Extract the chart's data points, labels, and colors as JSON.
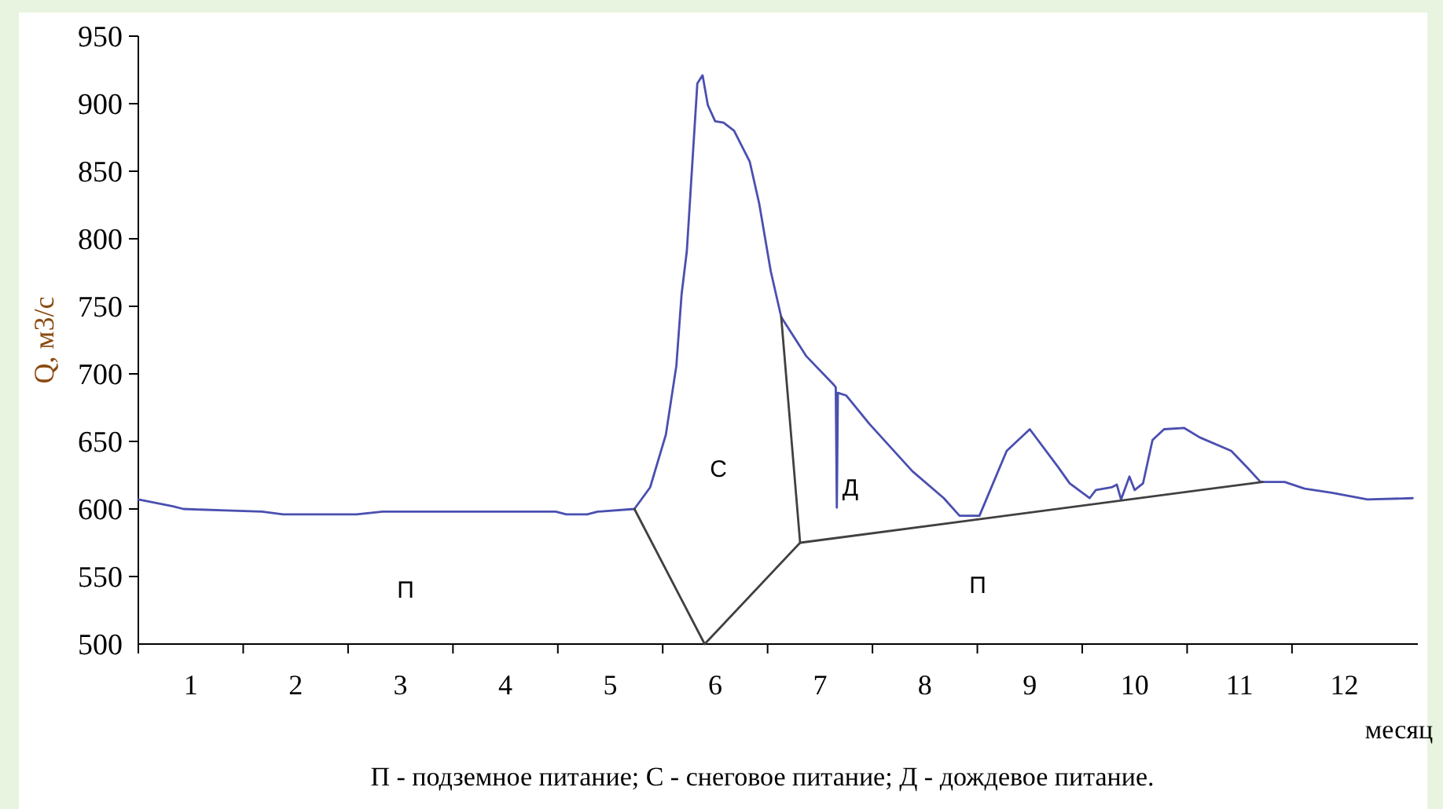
{
  "chart_data": {
    "type": "line",
    "ylabel": "Q, м3/с",
    "xlabel": "месяц",
    "xlim": [
      0,
      12.2
    ],
    "ylim": [
      500,
      950
    ],
    "yticks": [
      500,
      550,
      600,
      650,
      700,
      750,
      800,
      850,
      900,
      950
    ],
    "xticks": [
      {
        "value": 0,
        "label": null
      },
      {
        "value": 0.5,
        "label": "1"
      },
      {
        "value": 1,
        "label": null
      },
      {
        "value": 1.5,
        "label": "2"
      },
      {
        "value": 2,
        "label": null
      },
      {
        "value": 2.5,
        "label": "3"
      },
      {
        "value": 3,
        "label": null
      },
      {
        "value": 3.5,
        "label": "4"
      },
      {
        "value": 4,
        "label": null
      },
      {
        "value": 4.5,
        "label": "5"
      },
      {
        "value": 5,
        "label": null
      },
      {
        "value": 5.5,
        "label": "6"
      },
      {
        "value": 6,
        "label": null
      },
      {
        "value": 6.5,
        "label": "7"
      },
      {
        "value": 7,
        "label": null
      },
      {
        "value": 7.5,
        "label": "8"
      },
      {
        "value": 8,
        "label": null
      },
      {
        "value": 8.5,
        "label": "9"
      },
      {
        "value": 9,
        "label": null
      },
      {
        "value": 9.5,
        "label": "10"
      },
      {
        "value": 10,
        "label": null
      },
      {
        "value": 10.5,
        "label": "11"
      },
      {
        "value": 11,
        "label": null
      },
      {
        "value": 11.5,
        "label": "12"
      }
    ],
    "line_style": "solid",
    "marker": "none",
    "series": [
      {
        "color": "#4a4fb0",
        "x": [
          0,
          0.33,
          0.43,
          0.78,
          1.18,
          1.38,
          2.08,
          2.33,
          3.98,
          4.08,
          4.28,
          4.38,
          4.73,
          4.88,
          5.03,
          5.13,
          5.18,
          5.23,
          5.33,
          5.38,
          5.43,
          5.5,
          5.58,
          5.68,
          5.83,
          5.92,
          6.03,
          6.13,
          6.37,
          6.63,
          6.65,
          6.66,
          6.67,
          6.75,
          6.97,
          7.38,
          7.68,
          7.83,
          8.02,
          8.28,
          8.5,
          8.77,
          8.88,
          9.07,
          9.13,
          9.28,
          9.33,
          9.37,
          9.45,
          9.5,
          9.58,
          9.67,
          9.78,
          9.97,
          10.12,
          10.42,
          10.57,
          10.7,
          10.93,
          11.12,
          11.38,
          11.72,
          12.15
        ],
        "values": [
          607,
          602,
          600,
          599,
          598,
          596,
          596,
          598,
          598,
          596,
          596,
          598,
          600,
          616,
          655,
          706,
          759,
          791,
          915,
          921,
          899,
          887,
          886,
          880,
          857,
          826,
          776,
          742,
          713,
          692,
          690,
          601,
          686,
          684,
          663,
          628,
          608,
          595,
          595,
          643,
          659,
          631,
          619,
          608,
          614,
          616,
          618,
          607,
          624,
          614,
          619,
          651,
          659,
          660,
          653,
          643,
          631,
          620,
          620,
          615,
          612,
          607,
          608
        ]
      },
      {
        "color": "#404040",
        "x": [
          4.73,
          5.4,
          6.31,
          10.72
        ],
        "values": [
          600,
          500,
          575,
          620
        ]
      },
      {
        "color": "#404040",
        "x": [
          6.13,
          6.31
        ],
        "values": [
          742,
          575
        ]
      }
    ],
    "annotations": [
      "П",
      "С",
      "Д",
      "П",
      "П - подземное питание; С - снеговое питание; Д - дождевое питание."
    ]
  }
}
